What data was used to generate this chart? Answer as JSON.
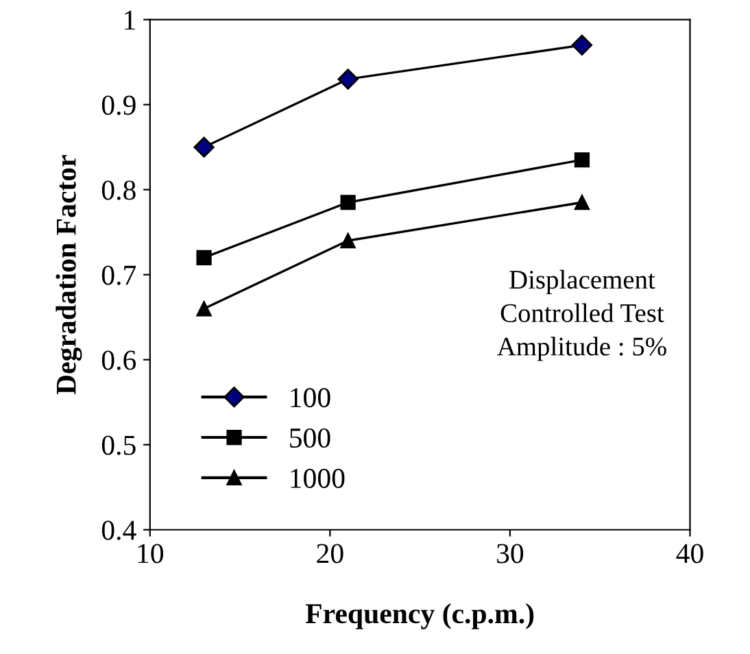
{
  "chart_data": {
    "type": "line",
    "xlabel": "Frequency (c.p.m.)",
    "ylabel": "Degradation Factor",
    "x": [
      13,
      21,
      34
    ],
    "series": [
      {
        "name": "100",
        "color": "#000080",
        "values": [
          0.85,
          0.93,
          0.97
        ],
        "marker": "diamond"
      },
      {
        "name": "500",
        "color": "#000000",
        "values": [
          0.72,
          0.785,
          0.835
        ],
        "marker": "square"
      },
      {
        "name": "1000",
        "color": "#000000",
        "values": [
          0.66,
          0.74,
          0.785
        ],
        "marker": "triangle"
      }
    ],
    "xlim": [
      10,
      40
    ],
    "xticks": [
      10,
      20,
      30,
      40
    ],
    "ylim": [
      0.4,
      1
    ],
    "yticks": [
      0.4,
      0.5,
      0.6,
      0.7,
      0.8,
      0.9,
      1
    ],
    "grid": false,
    "legend": "bottom left",
    "line_style": "solid",
    "annotations": [
      "Displacement\nControlled Test\nAmplitude : 5%"
    ]
  }
}
